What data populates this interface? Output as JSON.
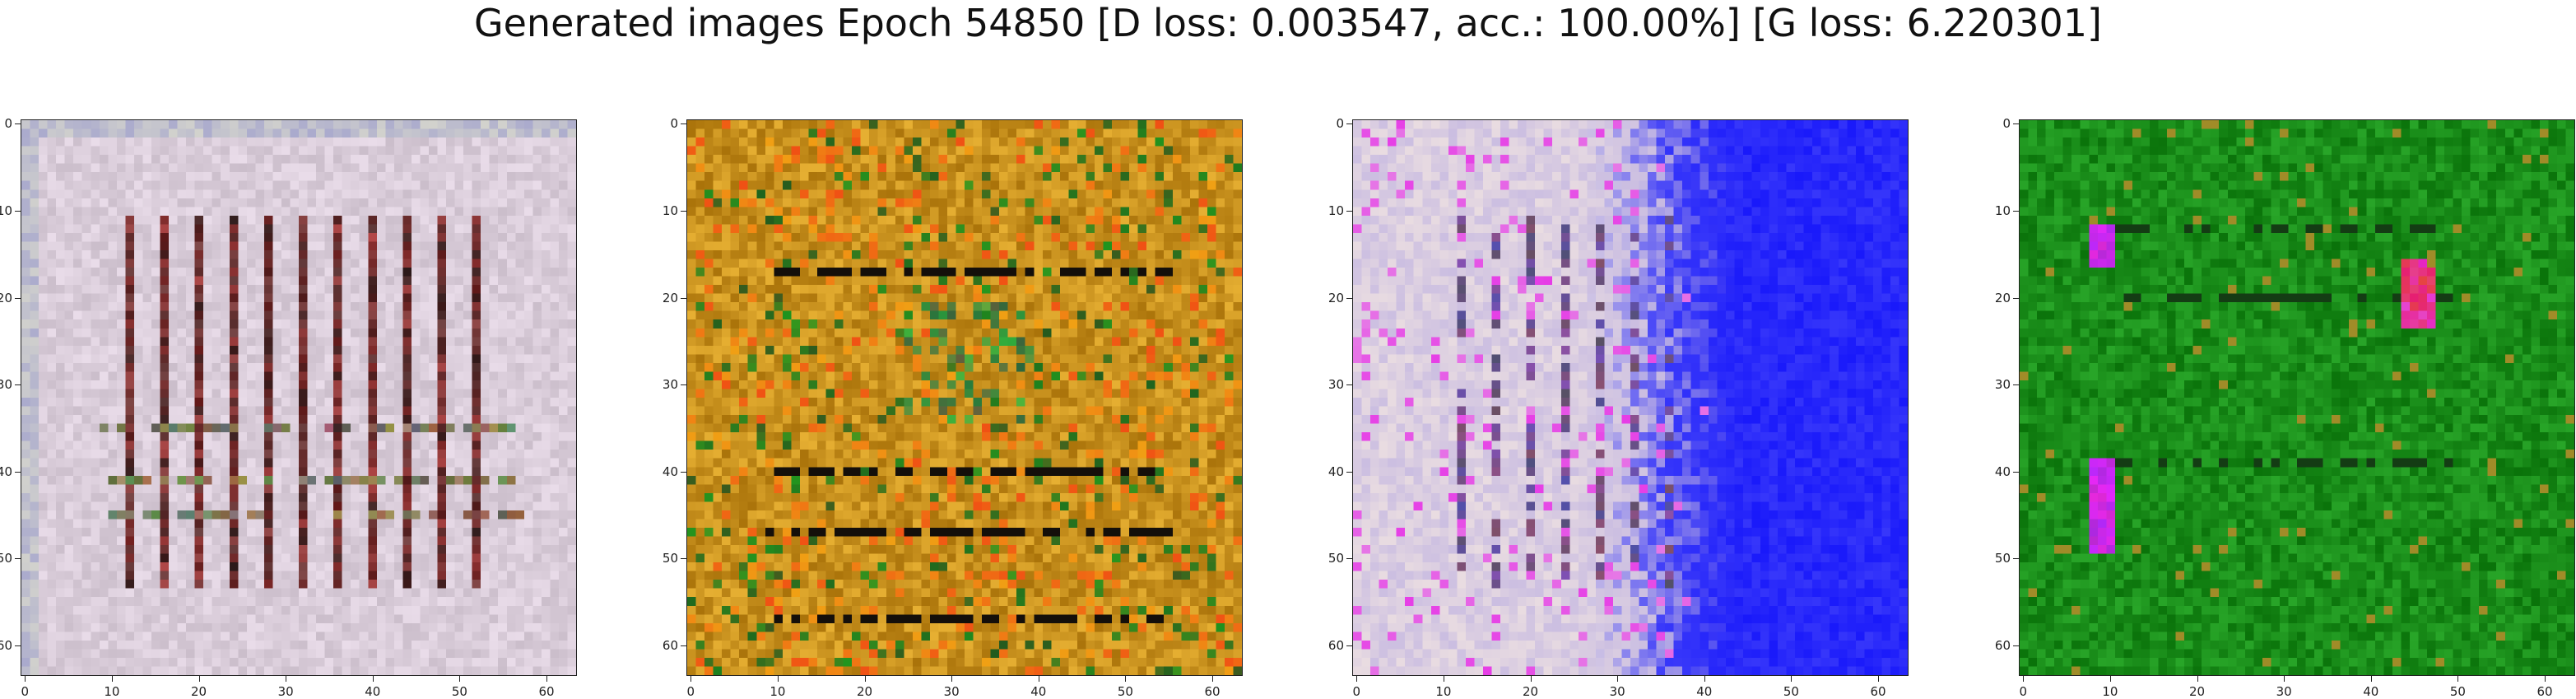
{
  "figure": {
    "suptitle": "Generated images Epoch 54850 [D loss: 0.003547, acc.: 100.00%] [G loss: 6.220301]"
  },
  "panels": [
    {
      "name": "generated-image-1",
      "palette": "lavender-grid",
      "base_color": "#d9ccd9"
    },
    {
      "name": "generated-image-2",
      "palette": "amber-noise",
      "base_color": "#c8931a"
    },
    {
      "name": "generated-image-3",
      "palette": "lavender-to-blue",
      "base_color": "#2a2aff"
    },
    {
      "name": "generated-image-4",
      "palette": "green-noise",
      "base_color": "#1e8a1e"
    }
  ],
  "axes": {
    "x_ticks": [
      "0",
      "10",
      "20",
      "30",
      "40",
      "50",
      "60"
    ],
    "y_ticks": [
      "0",
      "10",
      "20",
      "30",
      "40",
      "50",
      "60"
    ],
    "x_range": [
      -0.5,
      63.5
    ],
    "y_range": [
      -0.5,
      63.5
    ]
  }
}
